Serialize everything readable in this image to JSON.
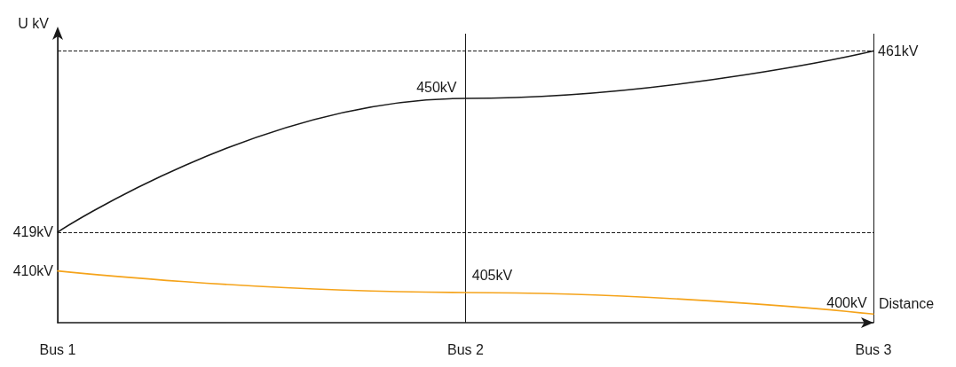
{
  "chart_data": {
    "type": "line",
    "xlabel": "Distance",
    "ylabel": "U kV",
    "categories": [
      "Bus 1",
      "Bus 2",
      "Bus 3"
    ],
    "ylim": [
      398,
      465
    ],
    "series": [
      {
        "color": "#1a1a1a",
        "values": [
          419,
          450,
          461
        ],
        "value_labels": [
          "419kV",
          "450kV",
          "461kV"
        ]
      },
      {
        "color": "#f5a31a",
        "values": [
          410,
          405,
          400
        ],
        "value_labels": [
          "410kV",
          "405kV",
          "400kV"
        ]
      }
    ],
    "ref_lines": [
      {
        "axis": "y",
        "value": 419,
        "line_style": "dashed",
        "color": "#1a1a1a"
      },
      {
        "axis": "y",
        "value": 461,
        "line_style": "dashed",
        "color": "#1a1a1a"
      }
    ],
    "grid": "x",
    "marker": "none",
    "line_style": "solid"
  }
}
